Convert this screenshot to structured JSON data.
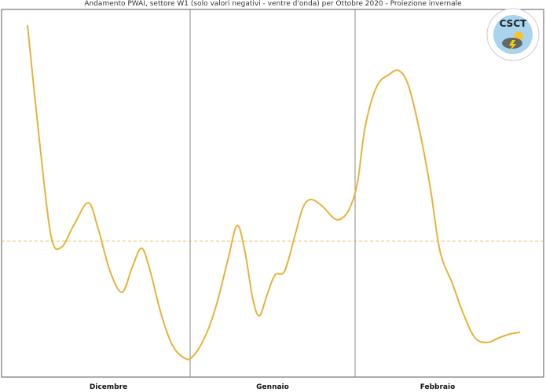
{
  "chart_data": {
    "type": "line",
    "title": "Andamento PWAI, settore W1 (solo valori negativi - ventre d'onda) per Ottobre 2020 - Proiezione invernale",
    "categories": [
      "Dicembre",
      "Gennaio",
      "Febbraio"
    ],
    "xlim": [
      0,
      90
    ],
    "ylim": [
      -1.73,
      2.95
    ],
    "reference_line": 0,
    "grid": false,
    "line_color": "#e6b33a",
    "reference_color": "#e6b33a",
    "series": [
      {
        "x": [
          4.3,
          6.3,
          8.2,
          9.9,
          12.1,
          14.4,
          16.0,
          18.0,
          20.0,
          21.7,
          23.2,
          24.5,
          26.5,
          28.4,
          30.4,
          31.7,
          33.7,
          35.6,
          37.6,
          39.1,
          40.4,
          41.7,
          42.8,
          44.1,
          45.4,
          47.0,
          48.7,
          50.0,
          51.3,
          53.2,
          55.2,
          56.5,
          57.8,
          59.1,
          60.4,
          62.3,
          64.3,
          66.0,
          67.6,
          69.5,
          71.2,
          72.8,
          74.8,
          76.7,
          78.6,
          80.6,
          82.6,
          84.5,
          86.1
        ],
        "y": [
          2.75,
          1.27,
          0.07,
          -0.08,
          0.22,
          0.49,
          0.17,
          -0.38,
          -0.65,
          -0.33,
          -0.09,
          -0.33,
          -0.93,
          -1.33,
          -1.49,
          -1.47,
          -1.23,
          -0.83,
          -0.23,
          0.2,
          -0.13,
          -0.73,
          -0.95,
          -0.68,
          -0.43,
          -0.38,
          0.07,
          0.42,
          0.53,
          0.45,
          0.29,
          0.29,
          0.42,
          0.75,
          1.47,
          1.97,
          2.12,
          2.17,
          1.97,
          1.37,
          0.67,
          -0.13,
          -0.53,
          -0.93,
          -1.23,
          -1.29,
          -1.23,
          -1.18,
          -1.16
        ]
      }
    ]
  },
  "logo": {
    "text": "CSCT",
    "ring_text": "CENTER FOR STUDY ON CLIMATE AND TELECONNECTIONS"
  }
}
